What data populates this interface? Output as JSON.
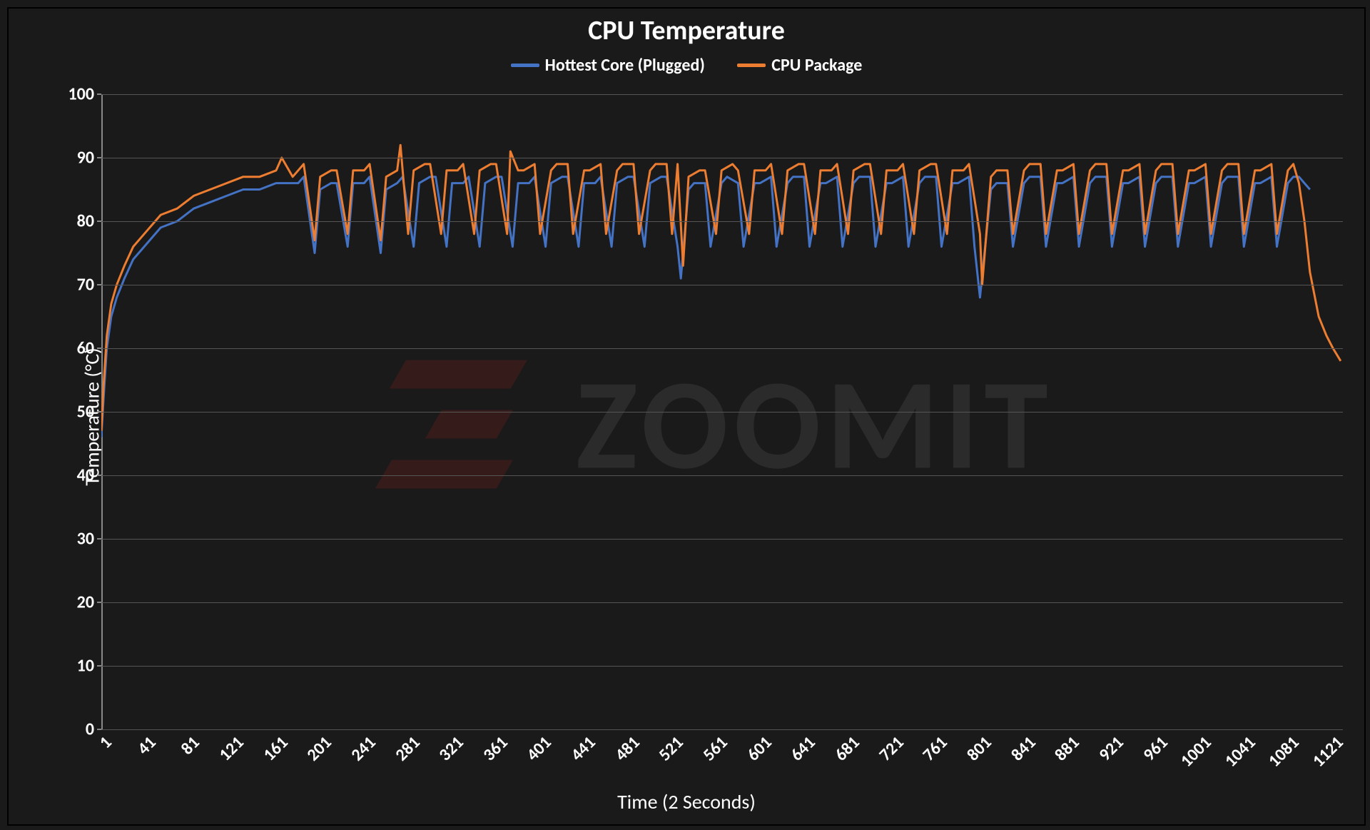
{
  "chart": {
    "type": "line",
    "title": "CPU Temperature",
    "title_fontsize": 38,
    "xlabel": "Time (2 Seconds)",
    "ylabel": "Temperature (°C)",
    "label_fontsize": 28,
    "tick_fontsize": 24,
    "background_color": "#1a1a1a",
    "grid_color": "#555555",
    "axis_color": "#888888",
    "text_color": "#ffffff",
    "line_width": 3,
    "ylim": [
      0,
      100
    ],
    "ytick_step": 10,
    "yticks": [
      0,
      10,
      20,
      30,
      40,
      50,
      60,
      70,
      80,
      90,
      100
    ],
    "xlim": [
      1,
      1130
    ],
    "xtick_step": 40,
    "xticks": [
      1,
      41,
      81,
      121,
      161,
      201,
      241,
      281,
      321,
      361,
      401,
      441,
      481,
      521,
      561,
      601,
      641,
      681,
      721,
      761,
      801,
      841,
      881,
      921,
      961,
      1001,
      1041,
      1081,
      1121
    ],
    "xtick_rotation_deg": -45,
    "legend_position": "top-center",
    "watermark": {
      "text": "ZOOMIT",
      "logo_color": "rgba(120,30,30,0.3)",
      "text_color": "rgba(120,120,120,0.18)",
      "fontsize": 180
    },
    "series": [
      {
        "name": "Hottest Core (Plugged)",
        "color": "#4472c4",
        "x": [
          1,
          3,
          6,
          10,
          15,
          22,
          30,
          40,
          55,
          70,
          85,
          100,
          115,
          130,
          145,
          160,
          170,
          180,
          185,
          195,
          200,
          210,
          215,
          225,
          230,
          240,
          245,
          255,
          260,
          270,
          275,
          285,
          290,
          300,
          305,
          315,
          320,
          330,
          335,
          345,
          350,
          360,
          365,
          375,
          380,
          390,
          395,
          405,
          410,
          420,
          425,
          435,
          440,
          450,
          455,
          465,
          470,
          480,
          485,
          495,
          500,
          510,
          515,
          525,
          528,
          535,
          540,
          550,
          555,
          565,
          570,
          580,
          585,
          595,
          600,
          610,
          615,
          625,
          630,
          640,
          645,
          655,
          660,
          670,
          675,
          685,
          690,
          700,
          705,
          715,
          720,
          730,
          735,
          745,
          750,
          760,
          765,
          775,
          780,
          790,
          795,
          800,
          810,
          815,
          825,
          830,
          840,
          845,
          855,
          860,
          870,
          875,
          885,
          890,
          900,
          905,
          915,
          920,
          930,
          935,
          945,
          950,
          960,
          965,
          975,
          980,
          990,
          995,
          1005,
          1010,
          1020,
          1025,
          1035,
          1040,
          1050,
          1055,
          1065,
          1070,
          1080,
          1085,
          1090,
          1095,
          1100
        ],
        "y": [
          46,
          52,
          60,
          65,
          68,
          71,
          74,
          76,
          79,
          80,
          82,
          83,
          84,
          85,
          85,
          86,
          86,
          86,
          87,
          75,
          85,
          86,
          86,
          76,
          86,
          86,
          87,
          75,
          85,
          86,
          87,
          76,
          86,
          87,
          87,
          76,
          86,
          86,
          87,
          76,
          86,
          87,
          87,
          76,
          86,
          86,
          87,
          76,
          86,
          87,
          87,
          76,
          86,
          86,
          87,
          76,
          86,
          87,
          87,
          76,
          86,
          87,
          87,
          76,
          71,
          85,
          86,
          86,
          76,
          86,
          87,
          86,
          76,
          86,
          86,
          87,
          76,
          86,
          87,
          87,
          76,
          86,
          86,
          87,
          76,
          86,
          87,
          87,
          76,
          86,
          86,
          87,
          76,
          86,
          87,
          87,
          76,
          86,
          86,
          87,
          76,
          68,
          85,
          86,
          86,
          76,
          86,
          87,
          87,
          76,
          86,
          86,
          87,
          76,
          86,
          87,
          87,
          76,
          86,
          86,
          87,
          76,
          86,
          87,
          87,
          76,
          86,
          86,
          87,
          76,
          86,
          87,
          87,
          76,
          86,
          86,
          87,
          76,
          86,
          87,
          87,
          86,
          85
        ]
      },
      {
        "name": "CPU Package",
        "color": "#ed7d31",
        "x": [
          1,
          3,
          6,
          10,
          15,
          22,
          30,
          40,
          55,
          70,
          85,
          100,
          115,
          130,
          145,
          160,
          165,
          175,
          180,
          185,
          195,
          200,
          210,
          215,
          225,
          230,
          240,
          245,
          255,
          260,
          270,
          273,
          280,
          285,
          295,
          300,
          310,
          315,
          325,
          330,
          340,
          345,
          355,
          360,
          370,
          373,
          380,
          385,
          395,
          400,
          410,
          415,
          425,
          430,
          440,
          445,
          455,
          460,
          470,
          475,
          485,
          490,
          500,
          505,
          515,
          520,
          525,
          530,
          535,
          545,
          550,
          560,
          565,
          575,
          580,
          590,
          595,
          605,
          610,
          620,
          625,
          635,
          640,
          650,
          655,
          665,
          670,
          680,
          685,
          695,
          700,
          710,
          715,
          725,
          730,
          740,
          745,
          755,
          760,
          770,
          775,
          785,
          790,
          800,
          802,
          810,
          815,
          825,
          830,
          840,
          845,
          855,
          860,
          870,
          875,
          885,
          890,
          900,
          905,
          915,
          920,
          930,
          935,
          945,
          950,
          960,
          965,
          975,
          980,
          990,
          995,
          1005,
          1010,
          1020,
          1025,
          1035,
          1040,
          1050,
          1055,
          1065,
          1070,
          1080,
          1085,
          1090,
          1095,
          1100,
          1108,
          1115,
          1121,
          1128
        ],
        "y": [
          47,
          54,
          62,
          67,
          70,
          73,
          76,
          78,
          81,
          82,
          84,
          85,
          86,
          87,
          87,
          88,
          90,
          87,
          88,
          89,
          77,
          87,
          88,
          88,
          78,
          88,
          88,
          89,
          77,
          87,
          88,
          92,
          78,
          88,
          89,
          89,
          78,
          88,
          88,
          89,
          78,
          88,
          89,
          89,
          78,
          91,
          88,
          88,
          89,
          78,
          88,
          89,
          89,
          78,
          88,
          88,
          89,
          78,
          88,
          89,
          89,
          78,
          88,
          89,
          89,
          78,
          89,
          73,
          87,
          88,
          88,
          78,
          88,
          89,
          88,
          78,
          88,
          88,
          89,
          78,
          88,
          89,
          89,
          78,
          88,
          88,
          89,
          78,
          88,
          89,
          89,
          78,
          88,
          88,
          89,
          78,
          88,
          89,
          89,
          78,
          88,
          88,
          89,
          78,
          70,
          87,
          88,
          88,
          78,
          88,
          89,
          89,
          78,
          88,
          88,
          89,
          78,
          88,
          89,
          89,
          78,
          88,
          88,
          89,
          78,
          88,
          89,
          89,
          78,
          88,
          88,
          89,
          78,
          88,
          89,
          89,
          78,
          88,
          88,
          89,
          78,
          88,
          89,
          86,
          80,
          72,
          65,
          62,
          60,
          58
        ]
      }
    ]
  }
}
